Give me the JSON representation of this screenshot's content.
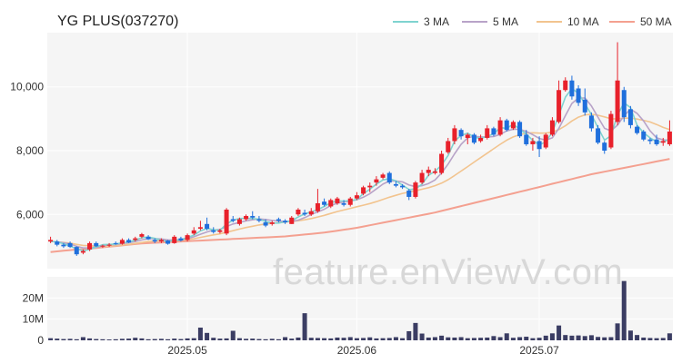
{
  "chart_data": {
    "type": "candlestick",
    "title": "YG PLUS(037270)",
    "watermark": "feature.enViewV.com",
    "legend": [
      {
        "name": "3 MA",
        "color": "#7fd3d0"
      },
      {
        "name": "5 MA",
        "color": "#b8a3c8"
      },
      {
        "name": "10 MA",
        "color": "#f2c48f"
      },
      {
        "name": "50 MA",
        "color": "#f4a090"
      }
    ],
    "colors": {
      "up": "#e8212b",
      "down": "#1f6fdc",
      "volume": "#3b3d63"
    },
    "price_axis": {
      "ylim": [
        4300,
        11700
      ],
      "ticks": [
        6000,
        8000,
        10000
      ],
      "tick_labels": [
        "6,000",
        "8,000",
        "10,000"
      ]
    },
    "volume_axis": {
      "ylim": [
        0,
        30000000
      ],
      "ticks": [
        0,
        10000000,
        20000000
      ],
      "tick_labels": [
        "0",
        "10M",
        "20M"
      ]
    },
    "x_axis": {
      "tick_labels": [
        "2025.05",
        "2025.06",
        "2025.07"
      ],
      "tick_index": [
        21,
        47,
        75
      ]
    },
    "candles": [
      [
        5150,
        5300,
        5100,
        5200
      ],
      [
        5150,
        5200,
        5000,
        5050
      ],
      [
        5050,
        5100,
        4950,
        5000
      ],
      [
        5100,
        5150,
        4950,
        4980
      ],
      [
        4980,
        5000,
        4700,
        4750
      ],
      [
        4800,
        4900,
        4750,
        4850
      ],
      [
        4900,
        5150,
        4850,
        5100
      ],
      [
        5100,
        5150,
        4980,
        5000
      ],
      [
        5000,
        5050,
        4950,
        5020
      ],
      [
        5020,
        5100,
        4980,
        5050
      ],
      [
        5100,
        5150,
        5050,
        5080
      ],
      [
        5080,
        5250,
        5050,
        5200
      ],
      [
        5200,
        5250,
        5100,
        5120
      ],
      [
        5200,
        5300,
        5150,
        5250
      ],
      [
        5300,
        5420,
        5250,
        5380
      ],
      [
        5300,
        5350,
        5200,
        5220
      ],
      [
        5200,
        5250,
        5100,
        5150
      ],
      [
        5150,
        5250,
        5100,
        5200
      ],
      [
        5180,
        5200,
        5050,
        5080
      ],
      [
        5100,
        5350,
        5080,
        5300
      ],
      [
        5250,
        5300,
        5150,
        5180
      ],
      [
        5200,
        5400,
        5150,
        5350
      ],
      [
        5400,
        5600,
        5350,
        5500
      ],
      [
        5550,
        5800,
        5500,
        5600
      ],
      [
        5700,
        5900,
        5500,
        5550
      ],
      [
        5500,
        5600,
        5400,
        5450
      ],
      [
        5450,
        5550,
        5400,
        5500
      ],
      [
        5400,
        6200,
        5350,
        6150
      ],
      [
        5850,
        5950,
        5750,
        5800
      ],
      [
        5700,
        5900,
        5650,
        5850
      ],
      [
        5850,
        6000,
        5800,
        5950
      ],
      [
        5950,
        6100,
        5850,
        5900
      ],
      [
        5850,
        5950,
        5750,
        5800
      ],
      [
        5750,
        5850,
        5600,
        5650
      ],
      [
        5700,
        5800,
        5650,
        5750
      ],
      [
        5850,
        5900,
        5750,
        5800
      ],
      [
        5800,
        5850,
        5700,
        5750
      ],
      [
        5700,
        5950,
        5700,
        5900
      ],
      [
        6000,
        6200,
        5950,
        6150
      ],
      [
        6050,
        6150,
        5950,
        6000
      ],
      [
        6000,
        6200,
        5950,
        6100
      ],
      [
        6100,
        6800,
        6050,
        6350
      ],
      [
        6400,
        6500,
        6250,
        6300
      ],
      [
        6250,
        6500,
        6200,
        6450
      ],
      [
        6350,
        6550,
        6300,
        6500
      ],
      [
        6350,
        6450,
        6250,
        6300
      ],
      [
        6300,
        6550,
        6250,
        6500
      ],
      [
        6500,
        6700,
        6450,
        6600
      ],
      [
        6650,
        6900,
        6600,
        6850
      ],
      [
        6850,
        7000,
        6700,
        6900
      ],
      [
        7000,
        7200,
        6900,
        7100
      ],
      [
        7150,
        7300,
        7100,
        7250
      ],
      [
        7300,
        7350,
        6950,
        7000
      ],
      [
        6950,
        7050,
        6850,
        6900
      ],
      [
        6900,
        6950,
        6800,
        6850
      ],
      [
        6750,
        6800,
        6450,
        6550
      ],
      [
        6550,
        7050,
        6500,
        7000
      ],
      [
        7000,
        7400,
        6950,
        7300
      ],
      [
        7300,
        7500,
        7200,
        7400
      ],
      [
        7300,
        7450,
        7250,
        7350
      ],
      [
        7300,
        8000,
        7250,
        7900
      ],
      [
        7950,
        8400,
        7900,
        8300
      ],
      [
        8300,
        8800,
        8200,
        8700
      ],
      [
        8650,
        8700,
        8350,
        8450
      ],
      [
        8400,
        8550,
        8200,
        8500
      ],
      [
        8500,
        8550,
        8200,
        8250
      ],
      [
        8300,
        8500,
        8250,
        8400
      ],
      [
        8400,
        8800,
        8350,
        8700
      ],
      [
        8700,
        8750,
        8450,
        8500
      ],
      [
        8500,
        9050,
        8450,
        8950
      ],
      [
        8950,
        9000,
        8600,
        8650
      ],
      [
        8700,
        8950,
        8650,
        8900
      ],
      [
        8900,
        8950,
        8400,
        8450
      ],
      [
        8500,
        8650,
        8150,
        8200
      ],
      [
        8200,
        8400,
        8000,
        8300
      ],
      [
        8300,
        8450,
        7800,
        8050
      ],
      [
        8100,
        8550,
        8050,
        8500
      ],
      [
        8500,
        9050,
        8450,
        8950
      ],
      [
        8900,
        10200,
        8850,
        9900
      ],
      [
        9900,
        10300,
        9850,
        10200
      ],
      [
        10200,
        10350,
        9600,
        9700
      ],
      [
        9950,
        10050,
        9400,
        9500
      ],
      [
        9600,
        9950,
        9100,
        9200
      ],
      [
        9100,
        9200,
        8600,
        8700
      ],
      [
        8700,
        8800,
        8200,
        8250
      ],
      [
        8250,
        8300,
        7900,
        8000
      ],
      [
        8100,
        9250,
        8050,
        9150
      ],
      [
        8900,
        11400,
        8800,
        10200
      ],
      [
        9900,
        10000,
        8900,
        9050
      ],
      [
        9300,
        9400,
        8700,
        8800
      ],
      [
        8750,
        8800,
        8500,
        8550
      ],
      [
        8600,
        8650,
        8300,
        8350
      ],
      [
        8350,
        8400,
        8200,
        8300
      ],
      [
        8350,
        8500,
        8150,
        8200
      ],
      [
        8250,
        8400,
        8150,
        8300
      ],
      [
        8200,
        8950,
        8150,
        8600
      ]
    ],
    "ma3": [
      5150,
      5140,
      5080,
      5010,
      4920,
      4860,
      4900,
      4980,
      5050,
      5060,
      5070,
      5110,
      5140,
      5190,
      5270,
      5290,
      5250,
      5190,
      5150,
      5190,
      5200,
      5280,
      5350,
      5480,
      5560,
      5520,
      5500,
      5700,
      5820,
      5870,
      5880,
      5870,
      5850,
      5780,
      5730,
      5730,
      5770,
      5800,
      5920,
      6020,
      6080,
      6150,
      6250,
      6370,
      6420,
      6420,
      6430,
      6470,
      6650,
      6790,
      6950,
      7080,
      7120,
      7050,
      6920,
      6780,
      6800,
      6950,
      7230,
      7350,
      7550,
      7850,
      8300,
      8480,
      8550,
      8420,
      8380,
      8450,
      8530,
      8720,
      8700,
      8830,
      8670,
      8520,
      8320,
      8180,
      8280,
      8580,
      9120,
      9680,
      9950,
      9800,
      9470,
      9130,
      8720,
      8330,
      8470,
      9120,
      9500,
      9350,
      8800,
      8560,
      8400,
      8280,
      8270,
      8370
    ],
    "ma5": [
      5150,
      5140,
      5110,
      5070,
      5000,
      4950,
      4950,
      4970,
      5010,
      5050,
      5050,
      5090,
      5110,
      5150,
      5200,
      5240,
      5240,
      5230,
      5200,
      5200,
      5210,
      5240,
      5300,
      5380,
      5450,
      5510,
      5530,
      5620,
      5700,
      5750,
      5800,
      5830,
      5860,
      5840,
      5810,
      5790,
      5780,
      5780,
      5820,
      5900,
      6000,
      6080,
      6160,
      6280,
      6350,
      6390,
      6420,
      6460,
      6540,
      6650,
      6800,
      6950,
      7050,
      7050,
      7020,
      6920,
      6870,
      6900,
      6970,
      7080,
      7300,
      7580,
      7900,
      8200,
      8400,
      8450,
      8430,
      8430,
      8440,
      8510,
      8620,
      8670,
      8670,
      8600,
      8500,
      8380,
      8330,
      8400,
      8700,
      9100,
      9480,
      9650,
      9650,
      9400,
      9050,
      8700,
      8620,
      8800,
      9100,
      9300,
      9170,
      8930,
      8620,
      8400,
      8340,
      8320
    ],
    "ma10": [
      5150,
      5140,
      5120,
      5100,
      5060,
      5030,
      5020,
      5000,
      5000,
      5010,
      5020,
      5040,
      5060,
      5090,
      5120,
      5150,
      5170,
      5180,
      5180,
      5180,
      5190,
      5210,
      5240,
      5280,
      5320,
      5360,
      5390,
      5440,
      5490,
      5540,
      5590,
      5630,
      5670,
      5700,
      5720,
      5740,
      5760,
      5780,
      5800,
      5830,
      5870,
      5920,
      5970,
      6030,
      6090,
      6140,
      6190,
      6240,
      6290,
      6340,
      6400,
      6470,
      6540,
      6600,
      6660,
      6700,
      6740,
      6790,
      6840,
      6900,
      6980,
      7090,
      7220,
      7360,
      7500,
      7640,
      7780,
      7920,
      8060,
      8200,
      8330,
      8430,
      8500,
      8550,
      8560,
      8550,
      8550,
      8580,
      8660,
      8780,
      8930,
      9050,
      9120,
      9140,
      9110,
      9060,
      9000,
      9000,
      9020,
      9020,
      8990,
      8950,
      8900,
      8820,
      8730,
      8660
    ],
    "ma50": [
      4820,
      4840,
      4860,
      4880,
      4900,
      4910,
      4930,
      4950,
      4970,
      4990,
      5010,
      5030,
      5050,
      5070,
      5090,
      5100,
      5110,
      5120,
      5130,
      5140,
      5150,
      5160,
      5170,
      5180,
      5190,
      5200,
      5210,
      5220,
      5230,
      5240,
      5250,
      5260,
      5270,
      5280,
      5290,
      5300,
      5310,
      5330,
      5350,
      5370,
      5390,
      5410,
      5430,
      5460,
      5490,
      5520,
      5550,
      5580,
      5620,
      5660,
      5700,
      5740,
      5780,
      5820,
      5860,
      5900,
      5940,
      5980,
      6020,
      6060,
      6110,
      6160,
      6210,
      6260,
      6310,
      6360,
      6410,
      6460,
      6510,
      6560,
      6610,
      6660,
      6710,
      6760,
      6810,
      6860,
      6910,
      6960,
      7010,
      7060,
      7110,
      7160,
      7210,
      7260,
      7300,
      7340,
      7380,
      7420,
      7460,
      7500,
      7540,
      7580,
      7620,
      7660,
      7700,
      7740
    ],
    "volume": [
      1000000,
      800000,
      600000,
      700000,
      500000,
      1500000,
      900000,
      600000,
      500000,
      400000,
      500000,
      700000,
      800000,
      1200000,
      900000,
      500000,
      600000,
      700000,
      500000,
      800000,
      600000,
      900000,
      1000000,
      6000000,
      3500000,
      1200000,
      800000,
      900000,
      4500000,
      1000000,
      700000,
      800000,
      600000,
      500000,
      700000,
      500000,
      1500000,
      800000,
      1300000,
      12800000,
      1200000,
      1100000,
      1000000,
      900000,
      1300000,
      1200000,
      1500000,
      1000000,
      1100000,
      1400000,
      900000,
      1000000,
      1100000,
      1500000,
      1000000,
      4300000,
      8200000,
      3200000,
      1300000,
      1500000,
      2200000,
      1400000,
      1300000,
      1500000,
      1000000,
      1100000,
      1200000,
      1300000,
      2000000,
      1500000,
      3300000,
      1200000,
      1500000,
      1700000,
      1000000,
      1200000,
      2200000,
      3300000,
      7000000,
      2500000,
      2200000,
      2300000,
      2000000,
      2400000,
      1600000,
      1400000,
      1500000,
      8000000,
      28000000,
      4600000,
      2500000,
      1300000,
      1100000,
      1000000,
      1100000,
      3300000
    ]
  }
}
